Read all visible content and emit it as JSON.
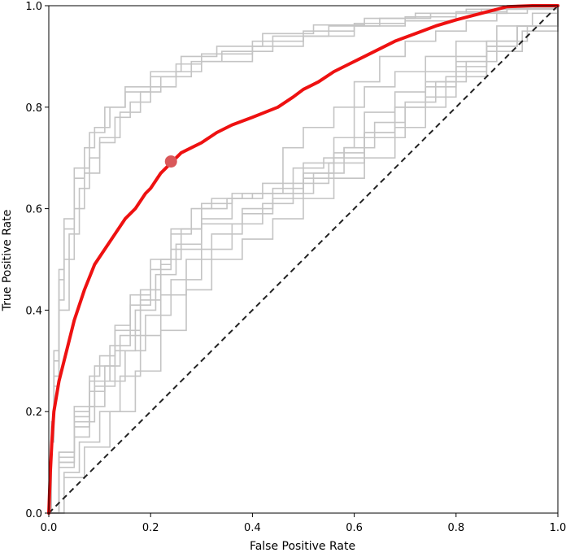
{
  "chart_data": {
    "type": "line",
    "title": "",
    "xlabel": "False Positive Rate",
    "ylabel": "True Positive Rate",
    "xlim": [
      0,
      1
    ],
    "ylim": [
      0,
      1
    ],
    "grid": false,
    "x_ticks": [
      "0.0",
      "0.2",
      "0.4",
      "0.6",
      "0.8",
      "1.0"
    ],
    "y_ticks": [
      "0.0",
      "0.2",
      "0.4",
      "0.6",
      "0.8",
      "1.0"
    ],
    "x_tick_values": [
      0,
      0.2,
      0.4,
      0.6,
      0.8,
      1.0
    ],
    "y_tick_values": [
      0,
      0.2,
      0.4,
      0.6,
      0.8,
      1.0
    ],
    "colors": {
      "highlight": "#ee1111",
      "background_curves": "#c4c4c4",
      "marker": "#d9585a",
      "diagonal": "#222222"
    },
    "diagonal": {
      "name": "chance",
      "x": [
        0,
        1
      ],
      "y": [
        0,
        1
      ]
    },
    "background_series": [
      {
        "name": "curve-1",
        "x": [
          0,
          0.005,
          0.01,
          0.02,
          0.03,
          0.05,
          0.07,
          0.1,
          0.13,
          0.16,
          0.2,
          0.25,
          0.3,
          0.4,
          0.5,
          0.6,
          0.7,
          0.8,
          0.9,
          1.0
        ],
        "y": [
          0,
          0.15,
          0.27,
          0.42,
          0.5,
          0.6,
          0.67,
          0.73,
          0.78,
          0.81,
          0.84,
          0.87,
          0.89,
          0.92,
          0.94,
          0.96,
          0.97,
          0.985,
          0.993,
          1.0
        ]
      },
      {
        "name": "curve-2",
        "x": [
          0,
          0.005,
          0.01,
          0.02,
          0.03,
          0.05,
          0.07,
          0.09,
          0.12,
          0.15,
          0.2,
          0.25,
          0.3,
          0.4,
          0.5,
          0.6,
          0.7,
          0.8,
          0.9,
          1.0
        ],
        "y": [
          0,
          0.17,
          0.3,
          0.46,
          0.56,
          0.66,
          0.72,
          0.76,
          0.8,
          0.83,
          0.86,
          0.885,
          0.905,
          0.93,
          0.95,
          0.965,
          0.978,
          0.988,
          0.995,
          1.0
        ]
      },
      {
        "name": "curve-3",
        "x": [
          0,
          0.005,
          0.01,
          0.02,
          0.04,
          0.06,
          0.08,
          0.1,
          0.14,
          0.18,
          0.22,
          0.28,
          0.34,
          0.44,
          0.55,
          0.65,
          0.75,
          0.85,
          1.0
        ],
        "y": [
          0,
          0.14,
          0.25,
          0.4,
          0.55,
          0.64,
          0.7,
          0.74,
          0.79,
          0.83,
          0.86,
          0.89,
          0.91,
          0.94,
          0.96,
          0.975,
          0.985,
          0.993,
          1.0
        ]
      },
      {
        "name": "curve-4",
        "x": [
          0,
          0.005,
          0.01,
          0.02,
          0.03,
          0.05,
          0.08,
          0.11,
          0.15,
          0.2,
          0.26,
          0.33,
          0.42,
          0.52,
          0.62,
          0.72,
          0.82,
          0.92,
          1.0
        ],
        "y": [
          0,
          0.18,
          0.32,
          0.48,
          0.58,
          0.68,
          0.75,
          0.8,
          0.84,
          0.87,
          0.9,
          0.92,
          0.945,
          0.962,
          0.975,
          0.985,
          0.993,
          0.998,
          1.0
        ]
      },
      {
        "name": "curve-5",
        "x": [
          0,
          0.02,
          0.05,
          0.08,
          0.1,
          0.13,
          0.16,
          0.2,
          0.24,
          0.3,
          0.36,
          0.42,
          0.46,
          0.52,
          0.58,
          0.64,
          0.7,
          0.76,
          0.82,
          0.88,
          0.94,
          1.0
        ],
        "y": [
          0,
          0.12,
          0.2,
          0.27,
          0.31,
          0.37,
          0.43,
          0.5,
          0.56,
          0.61,
          0.63,
          0.63,
          0.63,
          0.67,
          0.72,
          0.77,
          0.81,
          0.85,
          0.89,
          0.93,
          0.96,
          1.0
        ]
      },
      {
        "name": "curve-6",
        "x": [
          0,
          0.02,
          0.05,
          0.08,
          0.11,
          0.14,
          0.18,
          0.22,
          0.24,
          0.3,
          0.38,
          0.44,
          0.5,
          0.56,
          0.62,
          0.68,
          0.74,
          0.8,
          0.86,
          0.92,
          1.0
        ],
        "y": [
          0,
          0.1,
          0.17,
          0.24,
          0.29,
          0.35,
          0.42,
          0.49,
          0.52,
          0.57,
          0.6,
          0.62,
          0.66,
          0.7,
          0.75,
          0.8,
          0.84,
          0.88,
          0.92,
          0.96,
          1.0
        ]
      },
      {
        "name": "curve-7",
        "x": [
          0,
          0.02,
          0.05,
          0.08,
          0.11,
          0.15,
          0.19,
          0.24,
          0.3,
          0.36,
          0.42,
          0.48,
          0.55,
          0.62,
          0.7,
          0.78,
          0.86,
          0.93,
          1.0
        ],
        "y": [
          0,
          0.09,
          0.15,
          0.21,
          0.26,
          0.32,
          0.39,
          0.46,
          0.52,
          0.57,
          0.61,
          0.65,
          0.69,
          0.74,
          0.8,
          0.86,
          0.91,
          0.95,
          1.0
        ]
      },
      {
        "name": "curve-8",
        "x": [
          0,
          0.02,
          0.05,
          0.08,
          0.12,
          0.16,
          0.2,
          0.24,
          0.28,
          0.32,
          0.38,
          0.44,
          0.5,
          0.56,
          0.62,
          0.68,
          0.74,
          0.8,
          0.86,
          0.92,
          1.0
        ],
        "y": [
          0,
          0.11,
          0.19,
          0.26,
          0.33,
          0.41,
          0.48,
          0.55,
          0.6,
          0.62,
          0.63,
          0.64,
          0.69,
          0.74,
          0.79,
          0.83,
          0.87,
          0.9,
          0.93,
          0.96,
          1.0
        ]
      },
      {
        "name": "curve-9",
        "x": [
          0,
          0.03,
          0.06,
          0.1,
          0.14,
          0.18,
          0.22,
          0.27,
          0.32,
          0.38,
          0.44,
          0.5,
          0.56,
          0.62,
          0.68,
          0.74,
          0.8,
          0.86,
          0.92,
          1.0
        ],
        "y": [
          0,
          0.08,
          0.14,
          0.2,
          0.27,
          0.35,
          0.43,
          0.5,
          0.55,
          0.59,
          0.63,
          0.67,
          0.71,
          0.75,
          0.8,
          0.85,
          0.89,
          0.93,
          0.96,
          1.0
        ]
      },
      {
        "name": "curve-10",
        "x": [
          0,
          0.02,
          0.05,
          0.09,
          0.13,
          0.18,
          0.22,
          0.26,
          0.3,
          0.35,
          0.4,
          0.44,
          0.46,
          0.5,
          0.56,
          0.62,
          0.68,
          0.74,
          0.8,
          0.88,
          0.95,
          1.0
        ],
        "y": [
          0,
          0.12,
          0.21,
          0.29,
          0.36,
          0.44,
          0.5,
          0.56,
          0.6,
          0.62,
          0.63,
          0.63,
          0.72,
          0.76,
          0.8,
          0.84,
          0.87,
          0.9,
          0.93,
          0.96,
          0.985,
          1.0
        ]
      },
      {
        "name": "curve-11",
        "x": [
          0,
          0.03,
          0.07,
          0.12,
          0.17,
          0.22,
          0.27,
          0.32,
          0.38,
          0.44,
          0.5,
          0.56,
          0.62,
          0.68,
          0.74,
          0.8,
          0.86,
          0.92,
          1.0
        ],
        "y": [
          0,
          0.07,
          0.13,
          0.2,
          0.28,
          0.36,
          0.44,
          0.5,
          0.54,
          0.58,
          0.62,
          0.66,
          0.7,
          0.76,
          0.82,
          0.87,
          0.92,
          0.96,
          1.0
        ]
      },
      {
        "name": "curve-12",
        "x": [
          0,
          0.02,
          0.05,
          0.09,
          0.13,
          0.17,
          0.21,
          0.25,
          0.3,
          0.36,
          0.42,
          0.48,
          0.54,
          0.58,
          0.6,
          0.65,
          0.7,
          0.76,
          0.82,
          0.88,
          0.94,
          1.0
        ],
        "y": [
          0,
          0.1,
          0.18,
          0.25,
          0.32,
          0.4,
          0.47,
          0.53,
          0.58,
          0.62,
          0.65,
          0.68,
          0.7,
          0.72,
          0.85,
          0.9,
          0.93,
          0.95,
          0.97,
          0.985,
          0.995,
          1.0
        ]
      }
    ],
    "series": [
      {
        "name": "highlighted-roc",
        "x": [
          0,
          0.003,
          0.006,
          0.01,
          0.015,
          0.02,
          0.03,
          0.04,
          0.05,
          0.07,
          0.09,
          0.11,
          0.13,
          0.15,
          0.17,
          0.19,
          0.2,
          0.22,
          0.24,
          0.26,
          0.28,
          0.3,
          0.33,
          0.36,
          0.4,
          0.45,
          0.48,
          0.5,
          0.53,
          0.56,
          0.59,
          0.62,
          0.65,
          0.68,
          0.72,
          0.76,
          0.8,
          0.85,
          0.9,
          0.95,
          1.0
        ],
        "y": [
          0,
          0.08,
          0.14,
          0.2,
          0.23,
          0.26,
          0.3,
          0.34,
          0.38,
          0.44,
          0.49,
          0.52,
          0.55,
          0.58,
          0.6,
          0.63,
          0.64,
          0.67,
          0.69,
          0.71,
          0.72,
          0.73,
          0.75,
          0.765,
          0.78,
          0.8,
          0.82,
          0.835,
          0.85,
          0.87,
          0.885,
          0.9,
          0.915,
          0.93,
          0.945,
          0.96,
          0.972,
          0.985,
          0.998,
          1.0,
          1.0
        ]
      }
    ],
    "marker": {
      "name": "operating-point",
      "x": 0.24,
      "y": 0.693
    }
  }
}
